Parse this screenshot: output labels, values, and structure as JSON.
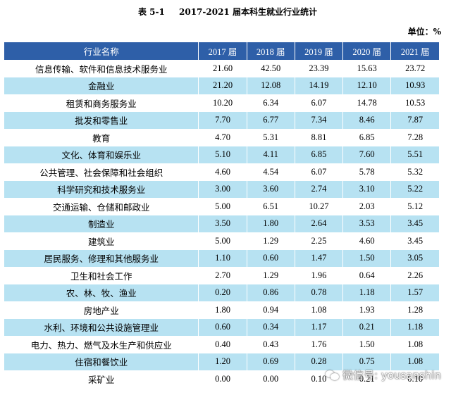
{
  "title": {
    "number": "表 5-1",
    "text": "2017-2021 届本科生就业行业统计"
  },
  "unit": "单位：%",
  "table": {
    "headers": [
      "行业名称",
      "2017 届",
      "2018 届",
      "2019 届",
      "2020 届",
      "2021 届"
    ],
    "rows": [
      [
        "信息传输、软件和信息技术服务业",
        "21.60",
        "42.50",
        "23.39",
        "15.63",
        "23.72"
      ],
      [
        "金融业",
        "21.20",
        "12.08",
        "14.19",
        "12.10",
        "10.93"
      ],
      [
        "租赁和商务服务业",
        "10.20",
        "6.34",
        "6.07",
        "14.78",
        "10.53"
      ],
      [
        "批发和零售业",
        "7.70",
        "6.77",
        "7.34",
        "8.46",
        "7.87"
      ],
      [
        "教育",
        "4.70",
        "5.31",
        "8.81",
        "6.85",
        "7.28"
      ],
      [
        "文化、体育和娱乐业",
        "5.10",
        "4.11",
        "6.85",
        "7.60",
        "5.51"
      ],
      [
        "公共管理、社会保障和社会组织",
        "4.60",
        "4.54",
        "6.07",
        "5.78",
        "5.32"
      ],
      [
        "科学研究和技术服务业",
        "3.00",
        "3.60",
        "2.74",
        "3.10",
        "5.22"
      ],
      [
        "交通运输、仓储和邮政业",
        "5.00",
        "6.51",
        "10.27",
        "2.03",
        "5.12"
      ],
      [
        "制造业",
        "3.50",
        "1.80",
        "2.64",
        "3.53",
        "3.45"
      ],
      [
        "建筑业",
        "5.00",
        "1.29",
        "2.25",
        "4.60",
        "3.45"
      ],
      [
        "居民服务、修理和其他服务业",
        "1.10",
        "0.60",
        "1.47",
        "1.50",
        "3.05"
      ],
      [
        "卫生和社会工作",
        "2.70",
        "1.29",
        "1.96",
        "0.64",
        "2.26"
      ],
      [
        "农、林、牧、渔业",
        "0.20",
        "0.86",
        "0.78",
        "1.18",
        "1.57"
      ],
      [
        "房地产业",
        "1.80",
        "0.94",
        "1.08",
        "1.93",
        "1.28"
      ],
      [
        "水利、环境和公共设施管理业",
        "0.60",
        "0.34",
        "1.17",
        "0.21",
        "1.18"
      ],
      [
        "电力、热力、燃气及水生产和供应业",
        "0.40",
        "0.43",
        "1.76",
        "1.50",
        "1.08"
      ],
      [
        "住宿和餐饮业",
        "1.20",
        "0.69",
        "0.28",
        "0.75",
        "1.08"
      ],
      [
        "采矿业",
        "0.00",
        "0.00",
        "0.10",
        "0.21",
        "0.10"
      ]
    ]
  },
  "watermark": "微信号: yousanshin",
  "colors": {
    "header_bg": "#2e5fa8",
    "alt_row_bg": "#b7e2f2",
    "header_text": "#ffffff"
  }
}
